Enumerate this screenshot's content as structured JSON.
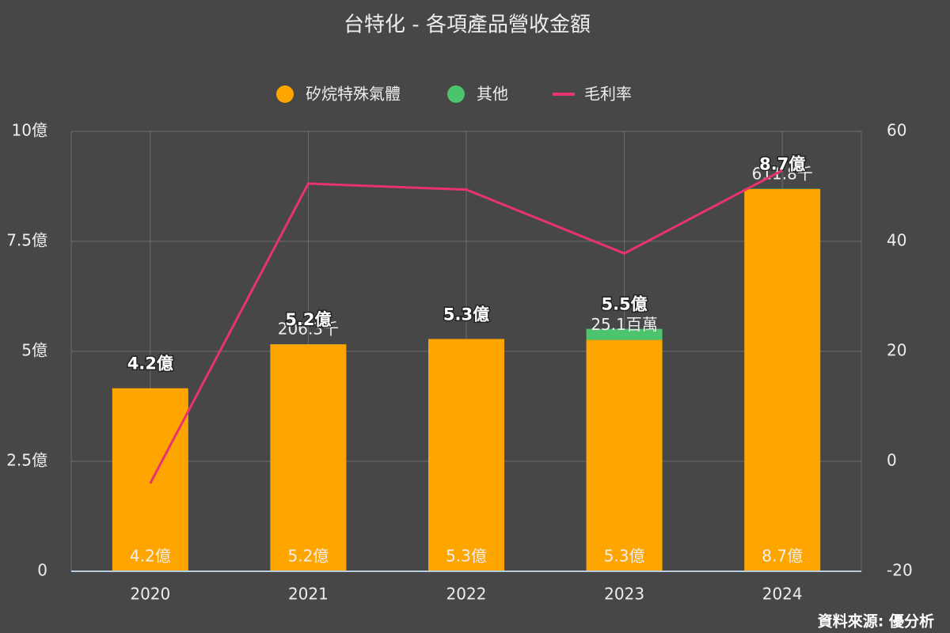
{
  "chart_data": {
    "type": "bar",
    "title": "台特化 - 各項產品營收金額",
    "categories": [
      "2020",
      "2021",
      "2022",
      "2023",
      "2024"
    ],
    "series": [
      {
        "name": "矽烷特殊氣體",
        "color": "#ffa500",
        "values": [
          4.16,
          5.16,
          5.28,
          5.26,
          8.69
        ],
        "value_labels": [
          "4.2億",
          "5.2億",
          "5.3億",
          "5.3億",
          "8.7億"
        ]
      },
      {
        "name": "其他",
        "color": "#4cc46e",
        "values": [
          null,
          0.002063,
          null,
          0.251,
          0.006118
        ],
        "value_labels": [
          null,
          "206.3千",
          null,
          "25.1百萬",
          "611.8千"
        ]
      },
      {
        "name": "毛利率",
        "type": "line",
        "axis": "y2",
        "color": "#e8336e",
        "values": [
          -4,
          50.5,
          49.4,
          37.8,
          52.9
        ]
      }
    ],
    "total_labels": [
      "4.2億",
      "5.2億",
      "5.3億",
      "5.5億",
      "8.7億"
    ],
    "ylim": [
      0,
      10
    ],
    "yticks": [
      0,
      {
        "value": 2.5,
        "label": "2.5億"
      },
      {
        "value": 5,
        "label": "5億"
      },
      {
        "value": 7.5,
        "label": "7.5億"
      },
      {
        "value": 10,
        "label": "10億"
      }
    ],
    "y2lim": [
      -20,
      60
    ],
    "y2ticks": [
      -20,
      0,
      20,
      40,
      60
    ],
    "grid": true,
    "legend": "top",
    "source": "資料來源: 優分析"
  }
}
